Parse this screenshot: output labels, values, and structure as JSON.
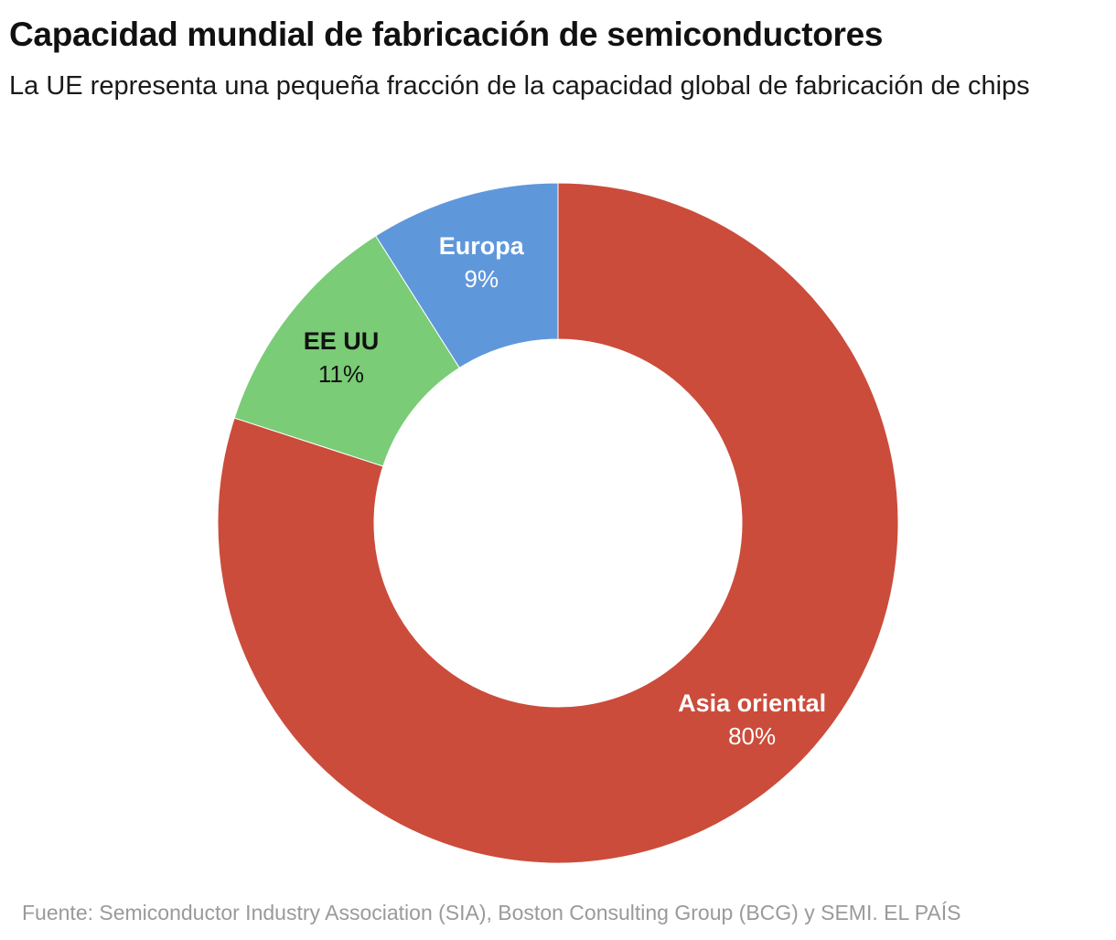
{
  "title": "Capacidad mundial de fabricación de semiconductores",
  "subtitle": "La UE representa una pequeña fracción de la capacidad global de fabricación de chips",
  "source": "Fuente: Semiconductor Industry Association (SIA), Boston Consulting Group (BCG) y SEMI. EL PAÍS",
  "chart_data": {
    "type": "pie",
    "variant": "donut",
    "title": "Capacidad mundial de fabricación de semiconductores",
    "start_angle_deg": 0,
    "direction": "clockwise",
    "unit": "%",
    "slices": [
      {
        "label": "Asia oriental",
        "value": 80,
        "value_label": "80%",
        "color": "#cb4c3b",
        "label_color": "#ffffff"
      },
      {
        "label": "EE UU",
        "value": 11,
        "value_label": "11%",
        "color": "#7acc76",
        "label_color": "#111111"
      },
      {
        "label": "Europa",
        "value": 9,
        "value_label": "9%",
        "color": "#5f97db",
        "label_color": "#ffffff"
      }
    ],
    "legend": "none",
    "grid": false
  }
}
